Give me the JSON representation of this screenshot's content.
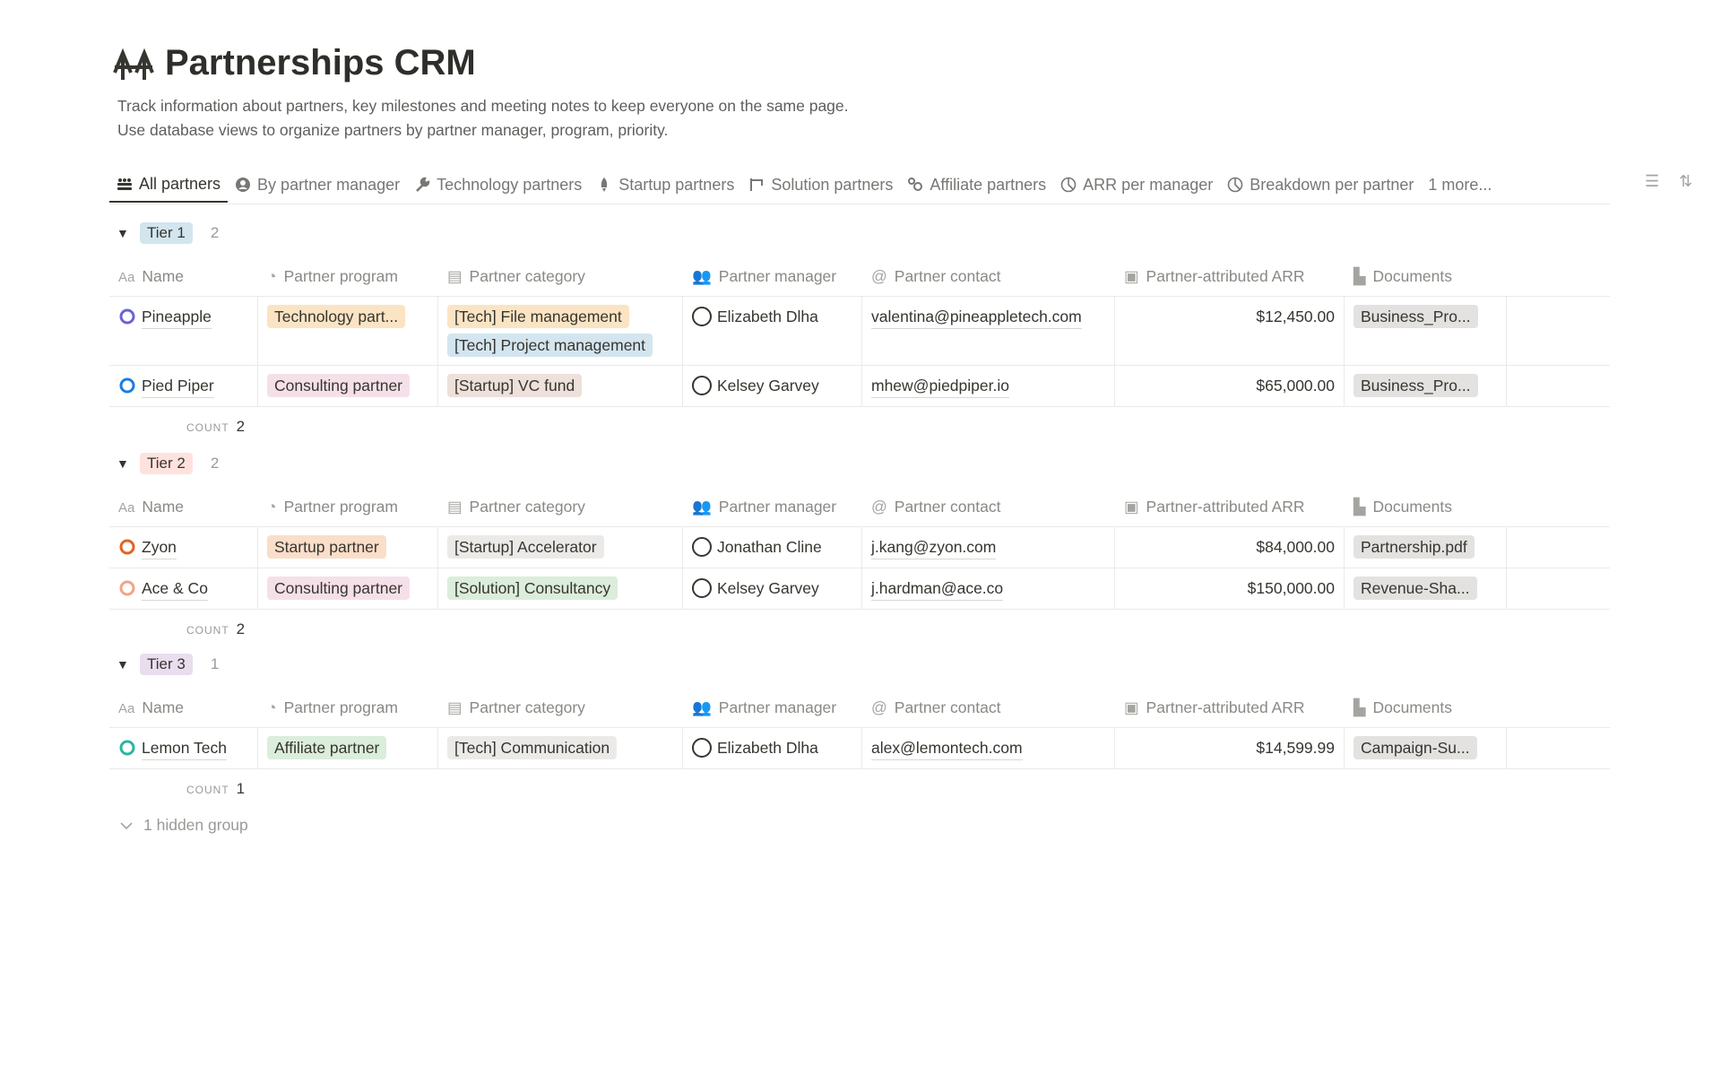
{
  "page": {
    "title": "Partnerships CRM",
    "icon": "bridge-icon",
    "description": [
      "Track information about partners, key milestones and meeting notes to keep everyone on the same page.",
      "Use database views to organize partners by partner manager, program, priority."
    ]
  },
  "tabs": [
    {
      "label": "All partners",
      "icon": "people-icon",
      "active": true
    },
    {
      "label": "By partner manager",
      "icon": "person-circle-icon"
    },
    {
      "label": "Technology partners",
      "icon": "wrench-icon"
    },
    {
      "label": "Startup partners",
      "icon": "rocket-icon"
    },
    {
      "label": "Solution partners",
      "icon": "hierarchy-icon"
    },
    {
      "label": "Affiliate partners",
      "icon": "share-icon"
    },
    {
      "label": "ARR per manager",
      "icon": "pie-chart-icon"
    },
    {
      "label": "Breakdown per partner",
      "icon": "pie-chart-icon"
    },
    {
      "label": "1 more..."
    }
  ],
  "columns": [
    {
      "label": "Name",
      "icon": "text-icon"
    },
    {
      "label": "Partner program",
      "icon": "select-icon"
    },
    {
      "label": "Partner category",
      "icon": "multi-select-icon"
    },
    {
      "label": "Partner manager",
      "icon": "people-icon"
    },
    {
      "label": "Partner contact",
      "icon": "at-icon"
    },
    {
      "label": "Partner-attributed ARR",
      "icon": "money-icon"
    },
    {
      "label": "Documents",
      "icon": "file-icon"
    }
  ],
  "count_label": "COUNT",
  "groups": [
    {
      "tier": "Tier 1",
      "color": "#d3e5ef",
      "count": "2",
      "rows": [
        {
          "name": "Pineapple",
          "icon_color": "#6c63d8",
          "program": {
            "label": "Technology part...",
            "color": "#fbe4c4"
          },
          "categories": [
            {
              "label": "[Tech] File management",
              "color": "#fbe4c4"
            },
            {
              "label": "[Tech] Project management",
              "color": "#d3e5ef"
            }
          ],
          "manager": "Elizabeth Dlha",
          "contact": "valentina@pineappletech.com",
          "arr": "$12,450.00",
          "document": "Business_Pro..."
        },
        {
          "name": "Pied Piper",
          "icon_color": "#1a7fe0",
          "program": {
            "label": "Consulting partner",
            "color": "#f5e0e9"
          },
          "categories": [
            {
              "label": "[Startup] VC fund",
              "color": "#eee0da"
            }
          ],
          "manager": "Kelsey Garvey",
          "contact": "mhew@piedpiper.io",
          "arr": "$65,000.00",
          "document": "Business_Pro..."
        }
      ]
    },
    {
      "tier": "Tier 2",
      "color": "#ffe2dd",
      "count": "2",
      "rows": [
        {
          "name": "Zyon",
          "icon_color": "#e5631f",
          "program": {
            "label": "Startup partner",
            "color": "#fadec9"
          },
          "categories": [
            {
              "label": "[Startup] Accelerator",
              "color": "#ebeae8"
            }
          ],
          "manager": "Jonathan Cline",
          "contact": "j.kang@zyon.com",
          "arr": "$84,000.00",
          "document": "Partnership.pdf"
        },
        {
          "name": "Ace & Co",
          "icon_color": "#f0a58a",
          "program": {
            "label": "Consulting partner",
            "color": "#f5e0e9"
          },
          "categories": [
            {
              "label": "[Solution] Consultancy",
              "color": "#dbeddb"
            }
          ],
          "manager": "Kelsey Garvey",
          "contact": "j.hardman@ace.co",
          "arr": "$150,000.00",
          "document": "Revenue-Sha..."
        }
      ]
    },
    {
      "tier": "Tier 3",
      "color": "#e8deee",
      "count": "1",
      "rows": [
        {
          "name": "Lemon Tech",
          "icon_color": "#2bb5a0",
          "program": {
            "label": "Affiliate partner",
            "color": "#dbeddb"
          },
          "categories": [
            {
              "label": "[Tech] Communication",
              "color": "#ebeae8"
            }
          ],
          "manager": "Elizabeth Dlha",
          "contact": "alex@lemontech.com",
          "arr": "$14,599.99",
          "document": "Campaign-Su..."
        }
      ]
    }
  ],
  "hidden_group": "1 hidden group",
  "colors": {
    "text": "#37352f",
    "muted": "#787774",
    "doc_tag": "#e3e2e0"
  }
}
